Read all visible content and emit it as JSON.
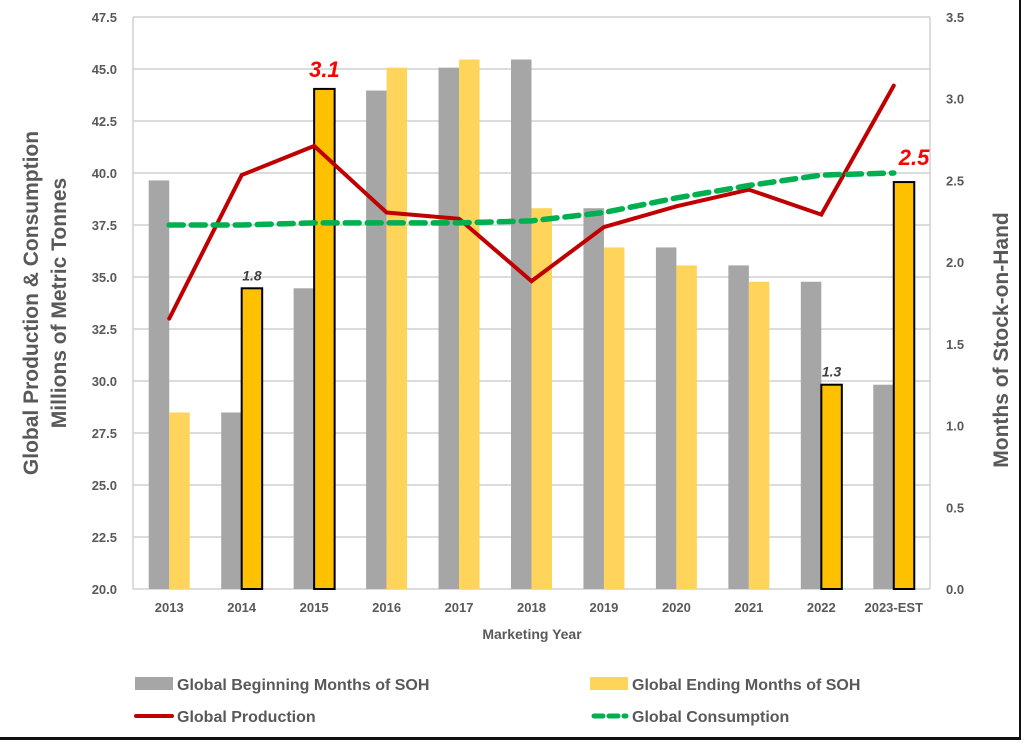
{
  "chart_data": {
    "type": "bar",
    "title": "",
    "xlabel": "Marketing Year",
    "ylabel": "Global Production & Consumption\nMillions of Metric Tonnes",
    "ylabel_lines": [
      "Global Production & Consumption",
      "Millions of Metric Tonnes"
    ],
    "y2label": "Months of Stock-on-Hand",
    "ylim": [
      20.0,
      47.5
    ],
    "y2lim": [
      0.0,
      3.5
    ],
    "yticks": [
      "20.0",
      "22.5",
      "25.0",
      "27.5",
      "30.0",
      "32.5",
      "35.0",
      "37.5",
      "40.0",
      "42.5",
      "45.0",
      "47.5"
    ],
    "y2ticks": [
      "0.0",
      "0.5",
      "1.0",
      "1.5",
      "2.0",
      "2.5",
      "3.0",
      "3.5"
    ],
    "grid": true,
    "legend_position": "bottom",
    "categories": [
      "2013",
      "2014",
      "2015",
      "2016",
      "2017",
      "2018",
      "2019",
      "2020",
      "2021",
      "2022",
      "2023-EST"
    ],
    "series": [
      {
        "name": "Global Beginning Months of SOH",
        "type": "bar",
        "axis": "right",
        "color": "#a6a6a6",
        "values": [
          2.5,
          1.08,
          1.84,
          3.05,
          3.19,
          3.24,
          2.33,
          2.09,
          1.98,
          1.88,
          1.25
        ]
      },
      {
        "name": "Global Ending Months of SOH",
        "type": "bar",
        "axis": "right",
        "color": "#ffd45a",
        "highlight_color": "#ffc000",
        "values": [
          1.08,
          1.84,
          3.06,
          3.19,
          3.24,
          2.33,
          2.09,
          1.98,
          1.88,
          1.25,
          2.49
        ],
        "highlighted": [
          1,
          2,
          9,
          10
        ]
      },
      {
        "name": "Global Production",
        "type": "line",
        "axis": "left",
        "color": "#c00000",
        "values": [
          33.0,
          39.9,
          41.3,
          38.1,
          37.8,
          34.8,
          37.4,
          38.4,
          39.2,
          38.0,
          44.2
        ]
      },
      {
        "name": "Global Consumption",
        "type": "line",
        "axis": "left",
        "dashed": true,
        "color": "#00b050",
        "values": [
          37.5,
          37.5,
          37.6,
          37.6,
          37.6,
          37.7,
          38.1,
          38.8,
          39.4,
          39.9,
          40.0
        ]
      }
    ],
    "annotations": [
      {
        "category": "2014",
        "text": "1.8",
        "style": "small"
      },
      {
        "category": "2015",
        "text": "3.1",
        "style": "big"
      },
      {
        "category": "2022",
        "text": "1.3",
        "style": "small"
      },
      {
        "category": "2023-EST",
        "text": "2.5",
        "style": "big-line"
      }
    ]
  }
}
